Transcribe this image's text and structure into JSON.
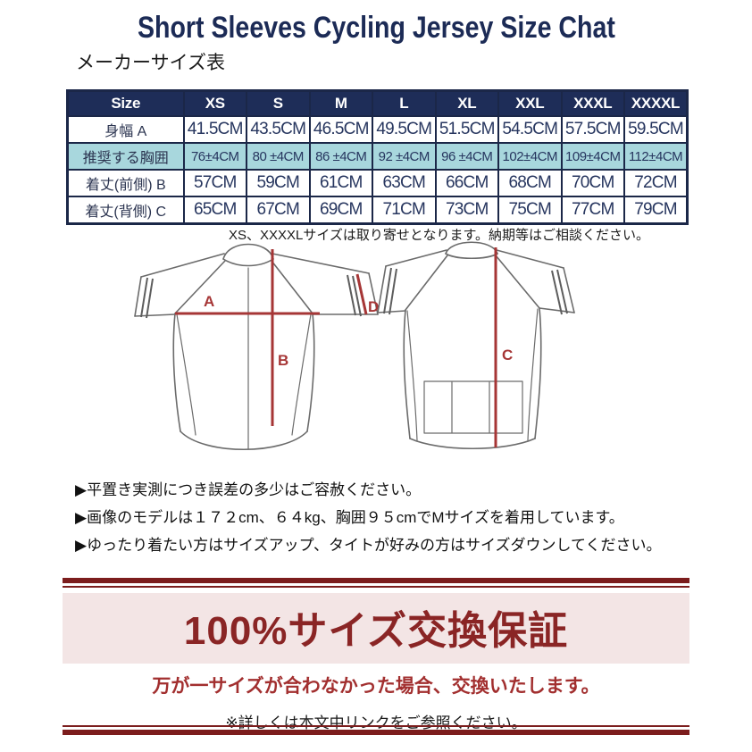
{
  "header": {
    "title": "Short Sleeves Cycling Jersey Size Chat",
    "subtitle": "メーカーサイズ表",
    "title_color": "#1c2b56"
  },
  "size_table": {
    "header_bg": "#1e2d58",
    "highlight_bg": "#a8d7dd",
    "columns": [
      "Size",
      "XS",
      "S",
      "M",
      "L",
      "XL",
      "XXL",
      "XXXL",
      "XXXXL"
    ],
    "rows": [
      {
        "label": "身幅 A",
        "highlight": false,
        "values": [
          "41.5CM",
          "43.5CM",
          "46.5CM",
          "49.5CM",
          "51.5CM",
          "54.5CM",
          "57.5CM",
          "59.5CM"
        ]
      },
      {
        "label": "推奨する胸囲",
        "highlight": true,
        "values": [
          "76±4CM",
          "80 ±4CM",
          "86 ±4CM",
          "92 ±4CM",
          "96 ±4CM",
          "102±4CM",
          "109±4CM",
          "112±4CM"
        ]
      },
      {
        "label": "着丈(前側) B",
        "highlight": false,
        "values": [
          "57CM",
          "59CM",
          "61CM",
          "63CM",
          "66CM",
          "68CM",
          "70CM",
          "72CM"
        ]
      },
      {
        "label": "着丈(背側) C",
        "highlight": false,
        "values": [
          "65CM",
          "67CM",
          "69CM",
          "71CM",
          "73CM",
          "75CM",
          "77CM",
          "79CM"
        ]
      }
    ],
    "note": "XS、XXXXLサイズは取り寄せとなります。納期等はご相談ください。"
  },
  "diagram": {
    "labels": {
      "front_width": "A",
      "front_length": "B",
      "back_length": "C",
      "sleeve": "D"
    },
    "line_color": "#a63636",
    "outline_color": "#6b6b6b"
  },
  "notes": {
    "bullet": "▶",
    "items": [
      "平置き実測につき誤差の多少はご容赦ください。",
      "画像のモデルは１７２cm、６４kg、胸囲９５cmでMサイズを着用しています。",
      "ゆったり着たい方はサイズアップ、タイトが好みの方はサイズダウンしてください。"
    ]
  },
  "guarantee": {
    "title": "100%サイズ交換保証",
    "subtitle": "万が一サイズが合わなかった場合、交換いたします。",
    "note": "※詳しくは本文中リンクをご参照ください。",
    "accent_color": "#7c1d1d",
    "band_bg": "#f3e5e5"
  }
}
